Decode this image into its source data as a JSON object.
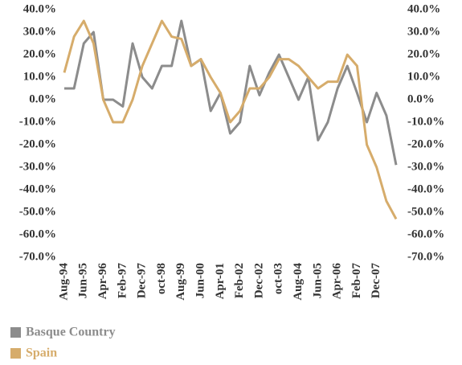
{
  "chart_data": {
    "type": "line",
    "categories": [
      "Aug-94",
      null,
      "Jun-95",
      null,
      "Apr-96",
      null,
      "Feb-97",
      null,
      "Dec-97",
      null,
      "oct-98",
      null,
      "Aug-99",
      null,
      "Jun-00",
      null,
      "Apr-01",
      null,
      "Feb-02",
      null,
      "Dec-02",
      null,
      "oct-03",
      null,
      "Aug-04",
      null,
      "Jun-05",
      null,
      "Apr-06",
      null,
      "Feb-07",
      null,
      "Dec-07",
      null,
      null
    ],
    "series": [
      {
        "name": "Basque Country",
        "color": "#8c8c8c",
        "values": [
          5,
          5,
          25,
          30,
          0,
          0,
          -3,
          25,
          10,
          5,
          15,
          15,
          35,
          15,
          18,
          -5,
          3,
          -15,
          -10,
          15,
          2,
          12,
          20,
          10,
          0,
          10,
          -18,
          -10,
          5,
          15,
          3,
          -10,
          3,
          -7,
          -29
        ]
      },
      {
        "name": "Spain",
        "color": "#d6ac6b",
        "values": [
          12,
          28,
          35,
          25,
          0,
          -10,
          -10,
          0,
          15,
          25,
          35,
          28,
          27,
          15,
          18,
          10,
          3,
          -10,
          -5,
          5,
          5,
          10,
          18,
          18,
          15,
          10,
          5,
          8,
          8,
          20,
          15,
          -20,
          -30,
          -45,
          -53
        ]
      }
    ],
    "ylim": [
      -70,
      40
    ],
    "yticks": [
      {
        "value": 40,
        "label": "40.0%"
      },
      {
        "value": 30,
        "label": "30.0%"
      },
      {
        "value": 20,
        "label": "20.0%"
      },
      {
        "value": 10,
        "label": "10.0%"
      },
      {
        "value": 0,
        "label": "0.0%"
      },
      {
        "value": -10,
        "label": "-10.0%"
      },
      {
        "value": -20,
        "label": "-20.0%"
      },
      {
        "value": -30,
        "label": "-30.0%"
      },
      {
        "value": -40,
        "label": "-40.0%"
      },
      {
        "value": -50,
        "label": "-50.0%"
      },
      {
        "value": -60,
        "label": "-60.0%"
      },
      {
        "value": -70,
        "label": "-70.0%"
      }
    ],
    "y2lim": [
      -70,
      40
    ],
    "y2ticks": [
      {
        "value": 40,
        "label": "40.0%"
      },
      {
        "value": 30,
        "label": "30.0%"
      },
      {
        "value": 20,
        "label": "20.0%"
      },
      {
        "value": 10,
        "label": "10.0%"
      },
      {
        "value": 0,
        "label": "0.0%"
      },
      {
        "value": -10,
        "label": "-10.0%"
      },
      {
        "value": -20,
        "label": "-20.0%"
      },
      {
        "value": -30,
        "label": "-30.0%"
      },
      {
        "value": -40,
        "label": "-40.0%"
      },
      {
        "value": -50,
        "label": "-50.0%"
      },
      {
        "value": -60,
        "label": "-60.0%"
      },
      {
        "value": -70,
        "label": "-70.0%"
      }
    ],
    "grid": false
  }
}
